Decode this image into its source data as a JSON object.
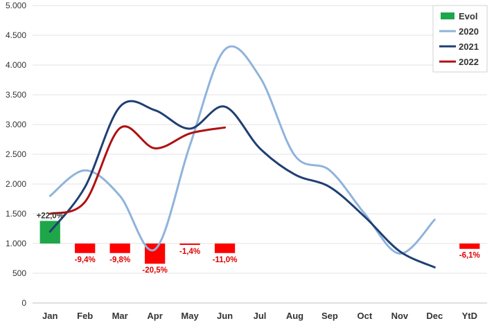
{
  "chart_data": {
    "type": "bar+line",
    "categories": [
      "Jan",
      "Feb",
      "Mar",
      "Apr",
      "May",
      "Jun",
      "Jul",
      "Aug",
      "Sep",
      "Oct",
      "Nov",
      "Dec",
      "YtD"
    ],
    "ylim": [
      0,
      5000
    ],
    "yticks": [
      0,
      500,
      1000,
      1500,
      2000,
      2500,
      3000,
      3500,
      4000,
      4500,
      5000
    ],
    "ytick_labels": [
      "0",
      "500",
      "1.000",
      "1.500",
      "2.000",
      "2.500",
      "3.000",
      "3.500",
      "4.000",
      "4.500",
      "5.000"
    ],
    "grid": true,
    "legend": "top-right",
    "evol": {
      "name": "Evol",
      "baseline": 1000,
      "values": [
        1380,
        840,
        840,
        660,
        980,
        840,
        null,
        null,
        null,
        null,
        null,
        null,
        910
      ],
      "labels": [
        "+22,0%",
        "-9,4%",
        "-9,8%",
        "-20,5%",
        "-1,4%",
        "-11,0%",
        "",
        "",
        "",
        "",
        "",
        "",
        "-6,1%"
      ],
      "color_pos": "#1fa64a",
      "color_neg": "#ff0000"
    },
    "series": [
      {
        "name": "2020",
        "color": "#8fb3dc",
        "values": [
          1800,
          2230,
          1800,
          900,
          2650,
          4260,
          3800,
          2480,
          2230,
          1500,
          830,
          1400,
          null
        ]
      },
      {
        "name": "2021",
        "color": "#1f3f73",
        "values": [
          1200,
          1950,
          3300,
          3240,
          2930,
          3300,
          2600,
          2160,
          1950,
          1450,
          870,
          600,
          null
        ]
      },
      {
        "name": "2022",
        "color": "#b01010",
        "values": [
          1500,
          1700,
          2940,
          2600,
          2850,
          2950,
          null,
          null,
          null,
          null,
          null,
          null,
          null
        ]
      }
    ]
  }
}
